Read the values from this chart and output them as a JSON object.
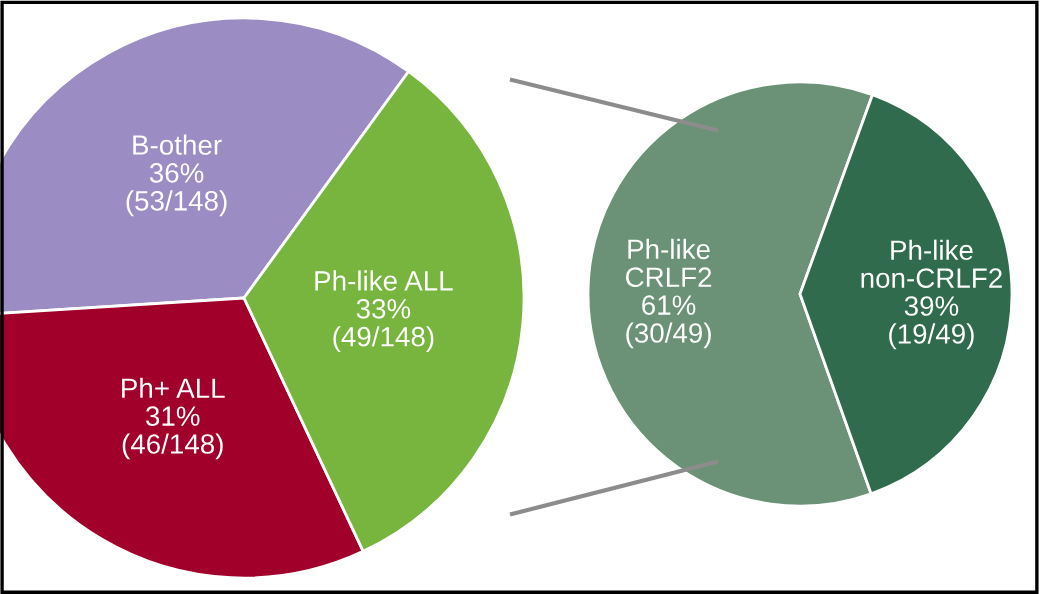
{
  "chart_data": [
    {
      "type": "pie",
      "categories": [
        "B-other",
        "Ph+ ALL",
        "Ph-like ALL"
      ],
      "values": [
        36,
        31,
        33
      ],
      "colors": [
        "#9b8dc4",
        "#a0002a",
        "#77b53f"
      ],
      "value_labels": [
        "36%\n(53/148)",
        "31%\n(46/148)",
        "33%\n(49/148)"
      ]
    },
    {
      "type": "pie",
      "categories": [
        "Ph-like\nCRLF2",
        "Ph-like\nnon-CRLF2"
      ],
      "values": [
        61,
        39
      ],
      "colors": [
        "#6b9277",
        "#2f6b4c"
      ],
      "value_labels": [
        "61%\n(30/49)",
        "39%\n(19/49)"
      ]
    }
  ]
}
